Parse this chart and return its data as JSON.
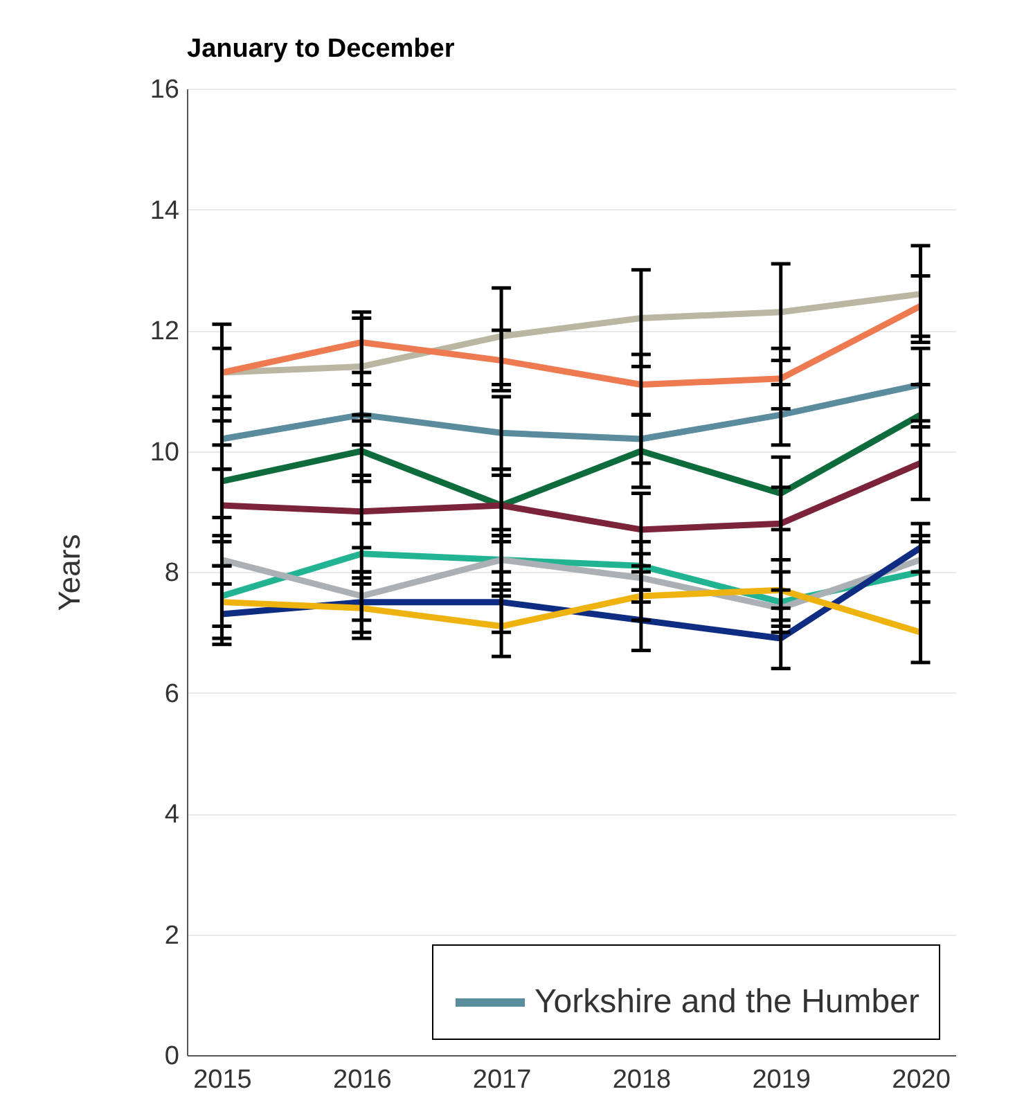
{
  "chart_data": {
    "type": "line",
    "title": "January to December",
    "ylabel": "Years",
    "categories": [
      "2015",
      "2016",
      "2017",
      "2018",
      "2019",
      "2020"
    ],
    "series": [
      {
        "color": "#b9b6a2",
        "values": [
          11.3,
          11.4,
          11.9,
          12.2,
          12.3,
          12.6
        ],
        "errors": [
          0.8,
          0.8,
          0.8,
          0.8,
          0.8,
          0.8
        ]
      },
      {
        "color": "#ee7a52",
        "values": [
          11.3,
          11.8,
          11.5,
          11.1,
          11.2,
          12.4
        ],
        "errors": [
          0.4,
          0.5,
          0.5,
          0.5,
          0.5,
          0.5
        ]
      },
      {
        "name": "Yorkshire and the Humber",
        "color": "#5a8c9e",
        "values": [
          10.2,
          10.6,
          10.3,
          10.2,
          10.6,
          11.1
        ],
        "errors": [
          0.5,
          0.5,
          0.6,
          0.4,
          0.5,
          0.6
        ]
      },
      {
        "color": "#0e6b3c",
        "values": [
          9.5,
          10.0,
          9.1,
          10.0,
          9.3,
          10.6
        ],
        "errors": [
          0.6,
          0.5,
          0.6,
          0.6,
          0.6,
          0.5
        ]
      },
      {
        "color": "#7b2339",
        "values": [
          9.1,
          9.0,
          9.1,
          8.7,
          8.8,
          9.8
        ],
        "errors": [
          0.6,
          0.6,
          0.5,
          0.6,
          0.6,
          0.6
        ]
      },
      {
        "color": "#22b393",
        "values": [
          7.6,
          8.3,
          8.2,
          8.1,
          7.5,
          8.0
        ],
        "errors": [
          0.5,
          0.5,
          0.5,
          0.4,
          0.5,
          0.5
        ]
      },
      {
        "color": "#aab0b4",
        "values": [
          8.2,
          7.6,
          8.2,
          7.9,
          7.4,
          8.2
        ],
        "errors": [
          0.4,
          0.4,
          0.4,
          0.4,
          0.3,
          0.4
        ]
      },
      {
        "color": "#0d2c82",
        "values": [
          7.3,
          7.5,
          7.5,
          7.2,
          6.9,
          8.4
        ],
        "errors": [
          0.5,
          0.5,
          0.5,
          0.5,
          0.5,
          0.4
        ]
      },
      {
        "color": "#efb30f",
        "values": [
          7.5,
          7.4,
          7.1,
          7.6,
          7.7,
          7.0
        ],
        "errors": [
          0.6,
          0.5,
          0.5,
          0.4,
          0.5,
          0.5
        ]
      }
    ],
    "ylim": [
      0,
      16
    ],
    "yticks": [
      0,
      2,
      4,
      6,
      8,
      10,
      12,
      14,
      16
    ],
    "grid": "y",
    "legend": "bottom right"
  }
}
